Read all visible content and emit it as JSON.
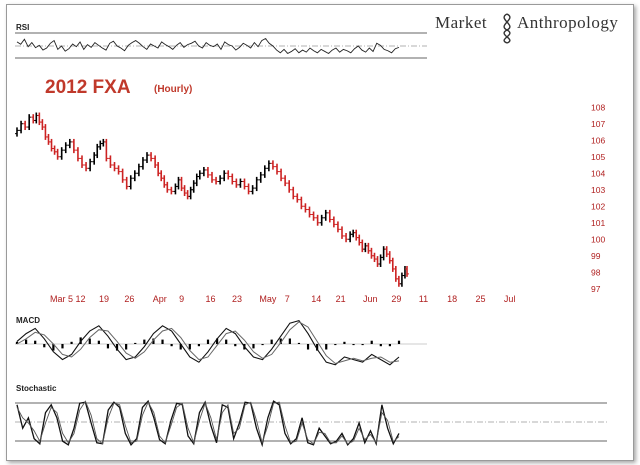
{
  "brand": {
    "text_left": "Market",
    "text_right": "Anthropology"
  },
  "chart_data": [
    {
      "type": "line",
      "title": "2012 FXA",
      "subtitle": "(Hourly)",
      "ylim": [
        96.5,
        108.5
      ],
      "y_ticks": [
        "97",
        "98",
        "99",
        "100",
        "101",
        "102",
        "103",
        "104",
        "105",
        "106",
        "107",
        "108"
      ],
      "x_ticks": [
        "Mar 5",
        "12",
        "19",
        "26",
        "Apr",
        "9",
        "16",
        "23",
        "May",
        "7",
        "14",
        "21",
        "Jun",
        "29",
        "11",
        "18",
        "25",
        "Jul"
      ],
      "colors": {
        "up": "#000000",
        "down": "#cc2222",
        "tick": "#b02020"
      },
      "x": [
        0,
        4,
        8,
        12,
        16,
        19,
        22,
        25,
        28,
        31,
        34,
        37,
        40,
        44,
        48,
        52,
        56,
        60,
        64,
        68,
        72,
        76,
        79,
        82,
        85,
        88,
        92,
        96,
        100,
        104,
        108,
        112,
        116,
        120,
        124,
        128,
        132,
        136,
        139,
        142,
        145,
        148,
        152,
        156,
        159,
        162,
        165,
        168,
        171,
        174,
        177,
        180,
        184,
        188,
        192,
        196,
        200,
        204,
        208,
        212,
        216,
        220,
        224,
        228,
        232,
        236,
        240,
        244,
        248,
        252,
        256,
        260,
        264,
        268,
        272,
        276,
        280,
        284,
        288,
        292,
        296,
        300,
        304,
        308,
        312,
        316,
        320,
        324,
        328,
        331,
        334,
        337,
        340,
        343,
        346,
        349,
        352,
        355,
        358,
        361,
        364,
        367,
        370,
        373,
        376,
        379,
        382,
        384
      ],
      "close": [
        106.6,
        107.0,
        106.8,
        107.4,
        107.2,
        107.5,
        107.1,
        106.8,
        106.2,
        105.9,
        105.5,
        105.3,
        105.0,
        105.4,
        105.7,
        105.9,
        105.4,
        104.9,
        104.5,
        104.3,
        104.7,
        105.1,
        105.6,
        105.8,
        105.9,
        104.9,
        104.5,
        104.3,
        104.1,
        103.6,
        103.2,
        103.7,
        104.0,
        104.4,
        104.8,
        105.1,
        104.9,
        104.5,
        104.0,
        103.7,
        103.3,
        103.0,
        102.9,
        103.2,
        103.6,
        103.1,
        102.8,
        102.6,
        103.0,
        103.4,
        103.8,
        104.0,
        104.2,
        103.9,
        103.6,
        103.5,
        103.7,
        104.0,
        103.8,
        103.5,
        103.3,
        103.5,
        103.2,
        102.9,
        103.1,
        103.6,
        103.9,
        104.3,
        104.6,
        104.4,
        104.1,
        103.7,
        103.4,
        103.0,
        102.6,
        102.4,
        102.0,
        101.8,
        101.5,
        101.3,
        101.0,
        101.3,
        101.6,
        101.2,
        100.9,
        100.6,
        100.2,
        100.0,
        100.3,
        100.4,
        100.1,
        99.8,
        99.4,
        99.6,
        99.3,
        99.0,
        98.8,
        98.5,
        98.9,
        99.4,
        99.1,
        98.7,
        98.2,
        97.6,
        97.3,
        97.8,
        98.2,
        97.9
      ]
    },
    {
      "type": "line",
      "title": "RSI",
      "ylim": [
        0,
        100
      ],
      "levels": [
        30,
        50,
        70
      ],
      "values": [
        62,
        55,
        70,
        48,
        60,
        45,
        52,
        38,
        44,
        58,
        66,
        40,
        50,
        35,
        42,
        56,
        48,
        62,
        40,
        54,
        46,
        60,
        52,
        44,
        38,
        58,
        64,
        50,
        44,
        36,
        52,
        60,
        66,
        58,
        48,
        40,
        56,
        50,
        44,
        62,
        54,
        48,
        40,
        52,
        60,
        46,
        54,
        58,
        64,
        50,
        44,
        60,
        52,
        48,
        56,
        40,
        62,
        54,
        50,
        38,
        46,
        58,
        52,
        44,
        60,
        48,
        66,
        72,
        58,
        50,
        38,
        30,
        40,
        28,
        34,
        42,
        30,
        38,
        32,
        44,
        36,
        30,
        40,
        34,
        28,
        38,
        44,
        32,
        40,
        36,
        30,
        42,
        50,
        38,
        32,
        44,
        34,
        58,
        52,
        40,
        36,
        30,
        42,
        46
      ]
    },
    {
      "type": "line",
      "title": "MACD",
      "ylim": [
        -1,
        1
      ],
      "series": [
        {
          "values": [
            0.1,
            0.4,
            0.6,
            0.2,
            -0.3,
            -0.6,
            -0.4,
            0.1,
            0.5,
            0.7,
            0.3,
            -0.2,
            -0.6,
            -0.5,
            -0.1,
            0.4,
            0.7,
            0.5,
            0.0,
            -0.5,
            -0.7,
            -0.3,
            0.2,
            0.6,
            0.4,
            -0.1,
            -0.5,
            -0.6,
            -0.2,
            0.3,
            0.8,
            0.9,
            0.4,
            -0.2,
            -0.7,
            -0.8,
            -0.5,
            -0.6,
            -0.7,
            -0.4,
            -0.6,
            -0.8,
            -0.5
          ]
        },
        {
          "values": [
            0.0,
            0.2,
            0.45,
            0.35,
            0.0,
            -0.4,
            -0.5,
            -0.2,
            0.25,
            0.55,
            0.5,
            0.1,
            -0.35,
            -0.55,
            -0.3,
            0.15,
            0.5,
            0.6,
            0.25,
            -0.25,
            -0.6,
            -0.5,
            -0.05,
            0.4,
            0.5,
            0.15,
            -0.3,
            -0.55,
            -0.4,
            0.05,
            0.55,
            0.85,
            0.65,
            0.1,
            -0.45,
            -0.75,
            -0.65,
            -0.55,
            -0.65,
            -0.55,
            -0.5,
            -0.7,
            -0.65
          ]
        }
      ],
      "histogram": [
        0.1,
        0.2,
        0.15,
        -0.15,
        -0.3,
        -0.2,
        0.1,
        0.3,
        0.25,
        0.15,
        -0.2,
        -0.3,
        -0.25,
        0.05,
        0.2,
        0.25,
        0.2,
        -0.1,
        -0.25,
        -0.25,
        -0.1,
        0.2,
        0.25,
        0.2,
        -0.1,
        -0.25,
        -0.2,
        -0.05,
        0.2,
        0.25,
        0.25,
        0.05,
        -0.25,
        -0.3,
        -0.25,
        -0.05,
        0.1,
        -0.05,
        -0.05,
        0.15,
        -0.1,
        -0.1,
        0.15
      ]
    },
    {
      "type": "line",
      "title": "Stochastic",
      "ylim": [
        0,
        100
      ],
      "levels": [
        20,
        50,
        80
      ],
      "series": [
        {
          "values": [
            85,
            40,
            60,
            20,
            10,
            70,
            85,
            60,
            15,
            8,
            40,
            88,
            90,
            50,
            12,
            10,
            75,
            90,
            80,
            30,
            8,
            20,
            80,
            92,
            60,
            18,
            10,
            55,
            88,
            85,
            25,
            10,
            70,
            90,
            45,
            12,
            85,
            80,
            20,
            50,
            90,
            88,
            40,
            8,
            60,
            92,
            85,
            30,
            10,
            20,
            60,
            12,
            8,
            40,
            25,
            10,
            15,
            30,
            8,
            20,
            50,
            12,
            35,
            10,
            85,
            40,
            10,
            30
          ]
        },
        {
          "values": [
            80,
            60,
            50,
            35,
            15,
            50,
            80,
            70,
            30,
            12,
            30,
            75,
            92,
            65,
            20,
            10,
            60,
            88,
            85,
            45,
            12,
            15,
            65,
            90,
            70,
            25,
            12,
            45,
            80,
            88,
            40,
            12,
            55,
            88,
            60,
            18,
            70,
            85,
            30,
            40,
            85,
            90,
            55,
            12,
            45,
            88,
            90,
            45,
            12,
            15,
            50,
            18,
            10,
            32,
            30,
            12,
            12,
            25,
            10,
            15,
            40,
            18,
            28,
            12,
            70,
            55,
            14,
            24
          ]
        }
      ]
    }
  ]
}
